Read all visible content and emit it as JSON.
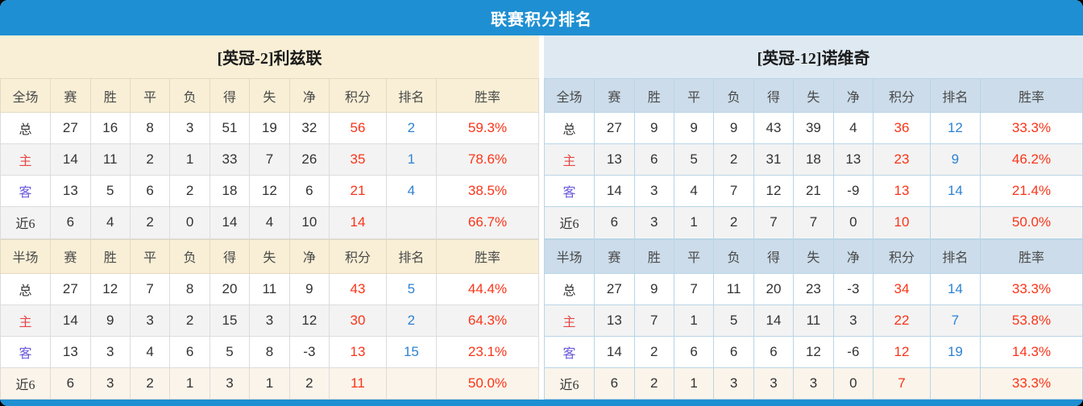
{
  "title": "联赛积分排名",
  "colors": {
    "accent_blue": "#1e8fd2",
    "points_red": "#fa3418",
    "rank_blue": "#2e82d2",
    "home_label_red": "#e64646",
    "away_label_violet": "#6a5add",
    "left_header_bg": "#f9efd6",
    "right_header_bg": "#dfe9f2",
    "right_subheader_bg": "#ccdcea"
  },
  "columns": [
    "赛",
    "胜",
    "平",
    "负",
    "得",
    "失",
    "净",
    "积分",
    "排名",
    "胜率"
  ],
  "panels": [
    {
      "team_label": "[英冠-2]利兹联",
      "sections": [
        {
          "scope_label": "全场",
          "rows": [
            {
              "label": "总",
              "type": "total",
              "cells": [
                "27",
                "16",
                "8",
                "3",
                "51",
                "19",
                "32",
                "56",
                "2",
                "59.3%"
              ]
            },
            {
              "label": "主",
              "type": "home",
              "cells": [
                "14",
                "11",
                "2",
                "1",
                "33",
                "7",
                "26",
                "35",
                "1",
                "78.6%"
              ]
            },
            {
              "label": "客",
              "type": "away",
              "cells": [
                "13",
                "5",
                "6",
                "2",
                "18",
                "12",
                "6",
                "21",
                "4",
                "38.5%"
              ]
            },
            {
              "label": "近6",
              "type": "recent",
              "cells": [
                "6",
                "4",
                "2",
                "0",
                "14",
                "4",
                "10",
                "14",
                "",
                "66.7%"
              ]
            }
          ]
        },
        {
          "scope_label": "半场",
          "rows": [
            {
              "label": "总",
              "type": "total",
              "cells": [
                "27",
                "12",
                "7",
                "8",
                "20",
                "11",
                "9",
                "43",
                "5",
                "44.4%"
              ]
            },
            {
              "label": "主",
              "type": "home",
              "cells": [
                "14",
                "9",
                "3",
                "2",
                "15",
                "3",
                "12",
                "30",
                "2",
                "64.3%"
              ]
            },
            {
              "label": "客",
              "type": "away",
              "cells": [
                "13",
                "3",
                "4",
                "6",
                "5",
                "8",
                "-3",
                "13",
                "15",
                "23.1%"
              ]
            },
            {
              "label": "近6",
              "type": "recent",
              "cells": [
                "6",
                "3",
                "2",
                "1",
                "3",
                "1",
                "2",
                "11",
                "",
                "50.0%"
              ]
            }
          ]
        }
      ]
    },
    {
      "team_label": "[英冠-12]诺维奇",
      "sections": [
        {
          "scope_label": "全场",
          "rows": [
            {
              "label": "总",
              "type": "total",
              "cells": [
                "27",
                "9",
                "9",
                "9",
                "43",
                "39",
                "4",
                "36",
                "12",
                "33.3%"
              ]
            },
            {
              "label": "主",
              "type": "home",
              "cells": [
                "13",
                "6",
                "5",
                "2",
                "31",
                "18",
                "13",
                "23",
                "9",
                "46.2%"
              ]
            },
            {
              "label": "客",
              "type": "away",
              "cells": [
                "14",
                "3",
                "4",
                "7",
                "12",
                "21",
                "-9",
                "13",
                "14",
                "21.4%"
              ]
            },
            {
              "label": "近6",
              "type": "recent",
              "cells": [
                "6",
                "3",
                "1",
                "2",
                "7",
                "7",
                "0",
                "10",
                "",
                "50.0%"
              ]
            }
          ]
        },
        {
          "scope_label": "半场",
          "rows": [
            {
              "label": "总",
              "type": "total",
              "cells": [
                "27",
                "9",
                "7",
                "11",
                "20",
                "23",
                "-3",
                "34",
                "14",
                "33.3%"
              ]
            },
            {
              "label": "主",
              "type": "home",
              "cells": [
                "13",
                "7",
                "1",
                "5",
                "14",
                "11",
                "3",
                "22",
                "7",
                "53.8%"
              ]
            },
            {
              "label": "客",
              "type": "away",
              "cells": [
                "14",
                "2",
                "6",
                "6",
                "6",
                "12",
                "-6",
                "12",
                "19",
                "14.3%"
              ]
            },
            {
              "label": "近6",
              "type": "recent",
              "cells": [
                "6",
                "2",
                "1",
                "3",
                "3",
                "3",
                "0",
                "7",
                "",
                "33.3%"
              ]
            }
          ]
        }
      ]
    }
  ]
}
